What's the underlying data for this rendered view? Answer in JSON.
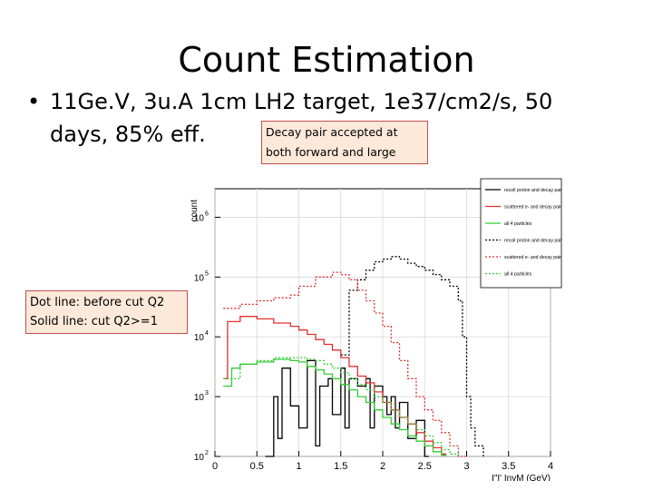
{
  "slide": {
    "title": "Count Estimation",
    "bullet_symbol": "•",
    "bullet_line1": "11Ge.V, 3u.A 1cm LH2 target, 1e37/cm2/s, 50",
    "bullet_line2": "days, 85% eff.",
    "callout_line1": "Decay pair accepted at",
    "callout_line2": "both forward and large",
    "note_line1": "Dot line: before cut Q2",
    "note_line2": "Solid line: cut Q2>=1"
  },
  "colors": {
    "callout_fill": "#fde9d9",
    "callout_border": "#c0504d",
    "series_black": "#000000",
    "series_red": "#e03030",
    "series_green": "#33cc33"
  },
  "chart_data": {
    "type": "line",
    "title": "",
    "ylabel": "count",
    "xlabel": "I\"I' InvM (GeV)",
    "xlim": [
      0,
      4
    ],
    "ylim": [
      100,
      3000000
    ],
    "yscale": "log",
    "x_ticks": [
      "0",
      "0.5",
      "1",
      "1.5",
      "2",
      "2.5",
      "3",
      "3.5",
      "4"
    ],
    "y_ticks": [
      {
        "value": 100,
        "base": "10",
        "exp": "2"
      },
      {
        "value": 1000,
        "base": "10",
        "exp": "3"
      },
      {
        "value": 10000,
        "base": "10",
        "exp": "4"
      },
      {
        "value": 100000,
        "base": "10",
        "exp": "5"
      },
      {
        "value": 1000000,
        "base": "10",
        "exp": "6"
      }
    ],
    "grid": true,
    "legend_position": "top-right",
    "series": [
      {
        "name": "recoil proton and decay pair",
        "color": "#000000",
        "style": "solid",
        "x": [
          0.6,
          0.7,
          0.75,
          0.8,
          0.9,
          1.0,
          1.1,
          1.2,
          1.25,
          1.35,
          1.4,
          1.5,
          1.55,
          1.6,
          1.7,
          1.8,
          1.85,
          1.9,
          2.0,
          2.05,
          2.1,
          2.15,
          2.2,
          2.3,
          2.4,
          2.5,
          2.55
        ],
        "y": [
          100,
          1000,
          200,
          3000,
          700,
          300,
          4000,
          150,
          1500,
          2000,
          500,
          3000,
          300,
          2000,
          1500,
          2000,
          300,
          1500,
          1000,
          500,
          1000,
          300,
          800,
          200,
          400,
          100,
          100
        ]
      },
      {
        "name": "scattered e- and decay pair",
        "color": "#e03030",
        "style": "solid",
        "x": [
          0.1,
          0.15,
          0.3,
          0.5,
          0.7,
          0.9,
          1.0,
          1.1,
          1.2,
          1.3,
          1.4,
          1.5,
          1.6,
          1.7,
          1.8,
          1.9,
          2.0,
          2.1,
          2.2,
          2.3,
          2.4,
          2.5,
          2.6,
          2.7,
          2.75
        ],
        "y": [
          2000,
          18000,
          22000,
          20000,
          17000,
          15000,
          13000,
          11000,
          9000,
          7500,
          6000,
          4500,
          3200,
          2200,
          1700,
          1200,
          800,
          600,
          450,
          350,
          250,
          180,
          140,
          110,
          100
        ]
      },
      {
        "name": "all 4 particles",
        "color": "#33cc33",
        "style": "solid",
        "x": [
          0.1,
          0.2,
          0.3,
          0.5,
          0.7,
          0.9,
          1.0,
          1.1,
          1.2,
          1.3,
          1.4,
          1.5,
          1.6,
          1.7,
          1.8,
          1.9,
          2.0,
          2.1,
          2.2,
          2.3,
          2.4,
          2.5,
          2.6,
          2.7,
          2.75
        ],
        "y": [
          1500,
          3000,
          3500,
          3800,
          4200,
          4000,
          3800,
          3200,
          2800,
          2400,
          2000,
          1600,
          1300,
          1000,
          800,
          600,
          450,
          350,
          280,
          220,
          180,
          150,
          120,
          105,
          100
        ]
      },
      {
        "name": "recoil proton and decay pair",
        "color": "#000000",
        "style": "dotted",
        "x": [
          1.5,
          1.6,
          1.7,
          1.8,
          1.9,
          2.0,
          2.1,
          2.2,
          2.3,
          2.4,
          2.5,
          2.6,
          2.7,
          2.8,
          2.9,
          2.95,
          3.0,
          3.05,
          3.1,
          3.2
        ],
        "y": [
          5000,
          60000,
          90000,
          130000,
          180000,
          200000,
          220000,
          200000,
          170000,
          150000,
          130000,
          110000,
          90000,
          70000,
          40000,
          10000,
          1000,
          300,
          150,
          100
        ]
      },
      {
        "name": "scattered e- and decay pair",
        "color": "#e03030",
        "style": "dotted",
        "x": [
          0.1,
          0.3,
          0.5,
          0.7,
          0.9,
          1.0,
          1.2,
          1.4,
          1.5,
          1.6,
          1.7,
          1.8,
          1.9,
          2.0,
          2.1,
          2.2,
          2.3,
          2.4,
          2.5,
          2.6,
          2.7,
          2.8,
          2.9,
          3.0
        ],
        "y": [
          30000,
          35000,
          40000,
          45000,
          50000,
          70000,
          100000,
          120000,
          110000,
          90000,
          60000,
          40000,
          25000,
          15000,
          8000,
          4000,
          2000,
          1000,
          600,
          400,
          250,
          150,
          100,
          100
        ]
      },
      {
        "name": "all 4 particles",
        "color": "#33cc33",
        "style": "dotted",
        "x": [
          0.1,
          0.3,
          0.5,
          0.7,
          0.9,
          1.0,
          1.1,
          1.2,
          1.3,
          1.4,
          1.5,
          1.6,
          1.7,
          1.8,
          1.9,
          2.0,
          2.1,
          2.2,
          2.3,
          2.4,
          2.5,
          2.6,
          2.7,
          2.8,
          2.9
        ],
        "y": [
          2000,
          3500,
          4000,
          4500,
          4500,
          4500,
          4200,
          4000,
          3500,
          3000,
          2500,
          2000,
          1600,
          1300,
          1000,
          800,
          600,
          450,
          350,
          280,
          220,
          170,
          130,
          110,
          100
        ]
      }
    ]
  }
}
